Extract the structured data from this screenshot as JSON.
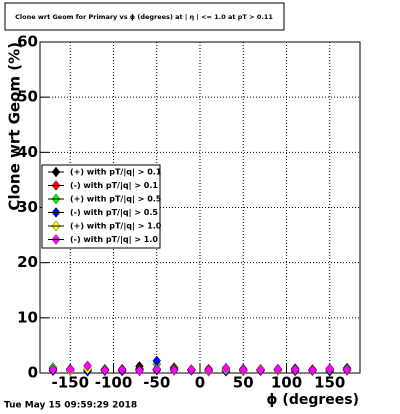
{
  "chart_data": {
    "type": "scatter",
    "title": "Clone wrt Geom for Primary vs ϕ (degrees) at | η | <= 1.0 at pT > 0.11",
    "x_label": "ϕ (degrees)",
    "y_label": "Clone wrt Geom (%)",
    "timestamp": "Tue May 15 09:59:29 2018",
    "xlim": [
      -185,
      185
    ],
    "xticks": [
      -150,
      -100,
      -50,
      0,
      50,
      100,
      150
    ],
    "ylim": [
      0,
      60
    ],
    "yticks": [
      0,
      10,
      20,
      30,
      40,
      50,
      60
    ],
    "grid": true,
    "legend": "left",
    "x": [
      -170,
      -150,
      -130,
      -110,
      -90,
      -70,
      -50,
      -30,
      -10,
      10,
      30,
      50,
      70,
      90,
      110,
      130,
      150,
      170
    ],
    "series": [
      {
        "name": "(+) with pT/|q| > 0.1",
        "color": "#000000",
        "values": [
          0.8,
          0.5,
          0.6,
          0.4,
          0.7,
          1.2,
          0.5,
          0.9,
          0.6,
          0.4,
          0.5,
          0.7,
          0.6,
          0.5,
          0.8,
          0.6,
          0.7,
          0.9
        ]
      },
      {
        "name": "(-) with pT/|q| > 0.1",
        "color": "#ff0000",
        "values": [
          0.5,
          0.7,
          0.4,
          0.6,
          0.5,
          0.8,
          0.6,
          1.0,
          0.5,
          0.7,
          0.4,
          0.6,
          0.5,
          0.7,
          0.4,
          0.6,
          0.5,
          0.6
        ]
      },
      {
        "name": "(+) with pT/|q| > 0.5",
        "color": "#00ff00",
        "values": [
          1.0,
          0.6,
          0.5,
          0.7,
          0.4,
          0.6,
          1.6,
          0.8,
          0.6,
          0.5,
          0.7,
          0.4,
          0.6,
          0.5,
          0.7,
          0.5,
          0.6,
          0.8
        ]
      },
      {
        "name": "(-) with pT/|q| > 0.5",
        "color": "#0000ff",
        "values": [
          0.4,
          0.5,
          0.3,
          0.5,
          0.4,
          0.6,
          2.2,
          0.6,
          0.5,
          0.4,
          0.3,
          0.5,
          0.4,
          0.6,
          0.4,
          0.5,
          0.3,
          0.5
        ]
      },
      {
        "name": "(+) with pT/|q| > 1.0",
        "color": "#ffff00",
        "values": [
          0.6,
          0.4,
          0.7,
          0.5,
          0.6,
          0.4,
          0.7,
          0.5,
          0.6,
          0.3,
          0.6,
          0.4,
          0.7,
          0.5,
          0.5,
          0.4,
          0.6,
          0.5
        ]
      },
      {
        "name": "(-) with pT/|q| > 1.0",
        "color": "#ff00ff",
        "values": [
          0.6,
          0.7,
          1.3,
          0.5,
          0.6,
          0.4,
          0.7,
          0.5,
          0.6,
          0.5,
          0.9,
          0.6,
          0.5,
          0.7,
          0.6,
          0.5,
          0.8,
          0.6
        ]
      }
    ]
  }
}
